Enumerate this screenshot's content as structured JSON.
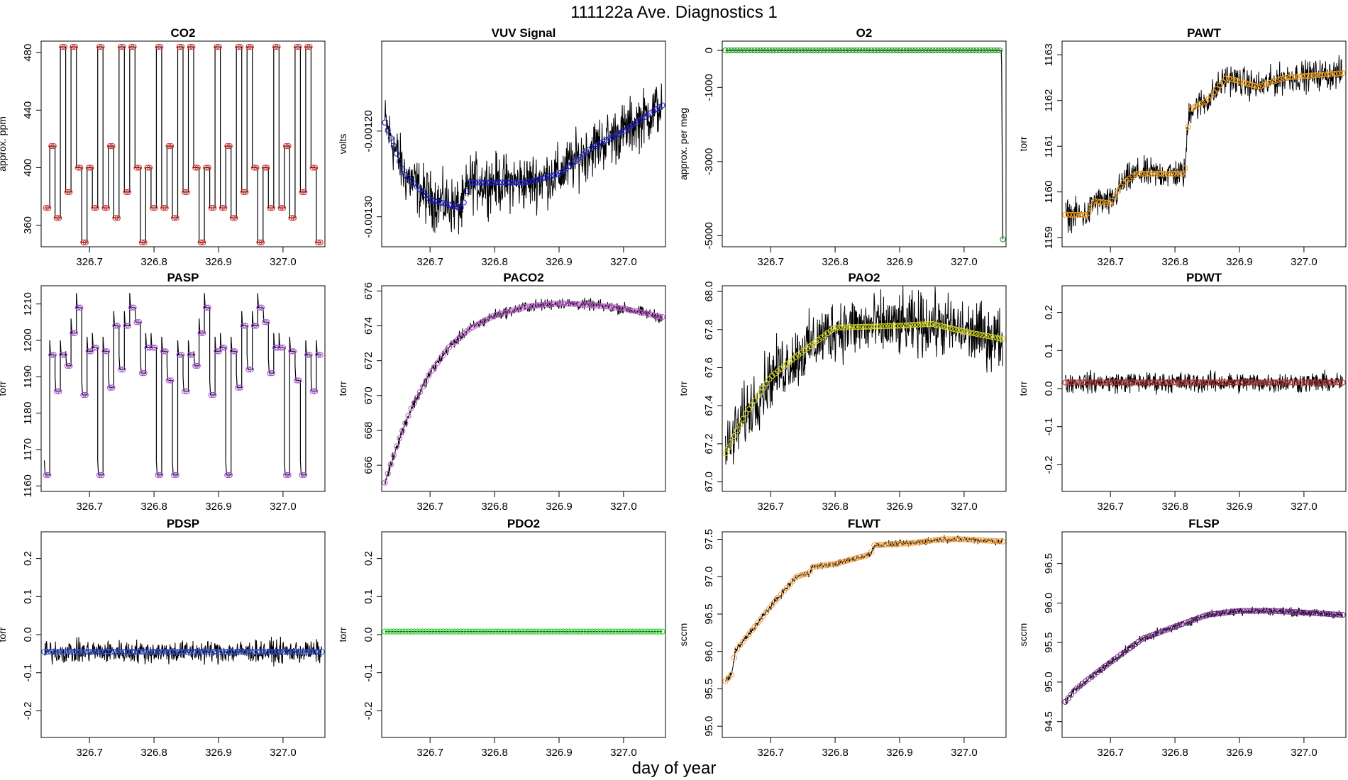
{
  "figure": {
    "title": "111122a   Ave. Diagnostics 1",
    "xlabel": "day of year"
  },
  "colors": {
    "trace": "#000000",
    "co2": "#e03030",
    "vuv": "#2020c0",
    "o2": "#20a020",
    "pawt": "#f0a020",
    "pasp": "#a050d0",
    "paco2": "#c060d0",
    "pao2": "#d8d820",
    "pdwt": "#b03030",
    "pdsp": "#3050d0",
    "pdo2": "#30d030",
    "flwt": "#f0a040",
    "flsp": "#7a3090"
  },
  "chart_data": [
    {
      "id": "co2",
      "type": "line",
      "title": "CO2",
      "xlabel": "",
      "ylabel": "approx. ppm",
      "xlim": [
        326.625,
        327.065
      ],
      "ylim": [
        345,
        488
      ],
      "xticks": [
        326.7,
        326.8,
        326.9,
        327.0
      ],
      "xtick_labels": [
        "326.7",
        "326.8",
        "326.9",
        "327.0"
      ],
      "yticks": [
        360,
        400,
        440,
        480
      ],
      "ytick_labels": [
        "360",
        "400",
        "440",
        "480"
      ],
      "pattern": "cycle",
      "cycle_values": [
        372,
        415,
        365,
        484,
        383,
        484,
        400,
        348,
        400,
        372,
        484
      ],
      "marker_color_key": "co2"
    },
    {
      "id": "vuv",
      "type": "line",
      "title": "VUV Signal",
      "xlabel": "",
      "ylabel": "volts",
      "xlim": [
        326.625,
        327.065
      ],
      "ylim": [
        -0.001335,
        -0.001095
      ],
      "xticks": [
        326.7,
        326.8,
        326.9,
        327.0
      ],
      "xtick_labels": [
        "326.7",
        "326.8",
        "326.9",
        "327.0"
      ],
      "yticks": [
        -0.0013,
        -0.0012
      ],
      "ytick_labels": [
        "-0.00130",
        "-0.00120"
      ],
      "pattern": "curve",
      "noise": 2.2e-05,
      "curve": [
        [
          326.63,
          -0.00119
        ],
        [
          326.66,
          -0.00125
        ],
        [
          326.7,
          -0.00128
        ],
        [
          326.75,
          -0.00129
        ],
        [
          326.76,
          -0.00126
        ],
        [
          326.8,
          -0.00126
        ],
        [
          326.85,
          -0.00126
        ],
        [
          326.9,
          -0.00125
        ],
        [
          326.95,
          -0.00122
        ],
        [
          327.0,
          -0.0012
        ],
        [
          327.06,
          -0.00117
        ]
      ],
      "marker_color_key": "vuv"
    },
    {
      "id": "o2",
      "type": "line",
      "title": "O2",
      "xlabel": "",
      "ylabel": "approx. per meg",
      "xlim": [
        326.625,
        327.065
      ],
      "ylim": [
        -5300,
        250
      ],
      "xticks": [
        326.7,
        326.8,
        326.9,
        327.0
      ],
      "xtick_labels": [
        "326.7",
        "326.8",
        "326.9",
        "327.0"
      ],
      "yticks": [
        -5000,
        -3000,
        -1000,
        0
      ],
      "ytick_labels": [
        "-5000",
        "-3000",
        "-1000",
        "0"
      ],
      "pattern": "curve",
      "noise": 0,
      "curve": [
        [
          326.63,
          0
        ],
        [
          327.058,
          0
        ],
        [
          327.06,
          -5100
        ]
      ],
      "marker_color_key": "o2"
    },
    {
      "id": "pawt",
      "type": "line",
      "title": "PAWT",
      "xlabel": "",
      "ylabel": "torr",
      "xlim": [
        326.625,
        327.065
      ],
      "ylim": [
        1158.8,
        1163.3
      ],
      "xticks": [
        326.7,
        326.8,
        326.9,
        327.0
      ],
      "xtick_labels": [
        "326.7",
        "326.8",
        "326.9",
        "327.0"
      ],
      "yticks": [
        1159,
        1160,
        1161,
        1162,
        1163
      ],
      "ytick_labels": [
        "1159",
        "1160",
        "1161",
        "1162",
        "1163"
      ],
      "pattern": "curve",
      "noise": 0.22,
      "curve": [
        [
          326.63,
          1159.5
        ],
        [
          326.665,
          1159.5
        ],
        [
          326.675,
          1159.8
        ],
        [
          326.7,
          1159.75
        ],
        [
          326.72,
          1160.2
        ],
        [
          326.74,
          1160.4
        ],
        [
          326.8,
          1160.4
        ],
        [
          326.815,
          1160.4
        ],
        [
          326.822,
          1161.8
        ],
        [
          326.85,
          1162.0
        ],
        [
          326.88,
          1162.5
        ],
        [
          326.93,
          1162.3
        ],
        [
          326.97,
          1162.5
        ],
        [
          327.06,
          1162.6
        ]
      ],
      "marker_color_key": "pawt"
    },
    {
      "id": "pasp",
      "type": "line",
      "title": "PASP",
      "xlabel": "",
      "ylabel": "torr",
      "xlim": [
        326.625,
        327.065
      ],
      "ylim": [
        1158.5,
        1215
      ],
      "xticks": [
        326.7,
        326.8,
        326.9,
        327.0
      ],
      "xtick_labels": [
        "326.7",
        "326.8",
        "326.9",
        "327.0"
      ],
      "yticks": [
        1160,
        1170,
        1180,
        1190,
        1200,
        1210
      ],
      "ytick_labels": [
        "1160",
        "1170",
        "1180",
        "1190",
        "1200",
        "1210"
      ],
      "pattern": "cycle",
      "cycle_values": [
        1163,
        1196,
        1186,
        1196,
        1193,
        1202,
        1209,
        1185,
        1197,
        1198,
        1163,
        1197,
        1187,
        1204,
        1192,
        1204,
        1209,
        1205,
        1191,
        1198,
        1198,
        1163,
        1197,
        1189
      ],
      "marker_color_key": "pasp"
    },
    {
      "id": "paco2",
      "type": "line",
      "title": "PACO2",
      "xlabel": "",
      "ylabel": "torr",
      "xlim": [
        326.625,
        327.065
      ],
      "ylim": [
        664.5,
        676.3
      ],
      "xticks": [
        326.7,
        326.8,
        326.9,
        327.0
      ],
      "xtick_labels": [
        "326.7",
        "326.8",
        "326.9",
        "327.0"
      ],
      "yticks": [
        666,
        668,
        670,
        672,
        674,
        676
      ],
      "ytick_labels": [
        "666",
        "668",
        "670",
        "672",
        "674",
        "676"
      ],
      "pattern": "curve",
      "noise": 0.22,
      "curve": [
        [
          326.63,
          665.0
        ],
        [
          326.65,
          667.3
        ],
        [
          326.67,
          669.2
        ],
        [
          326.7,
          671.3
        ],
        [
          326.73,
          672.8
        ],
        [
          326.76,
          673.8
        ],
        [
          326.8,
          674.6
        ],
        [
          326.85,
          675.1
        ],
        [
          326.9,
          675.3
        ],
        [
          326.95,
          675.2
        ],
        [
          327.0,
          675.0
        ],
        [
          327.06,
          674.5
        ]
      ],
      "marker_color_key": "paco2"
    },
    {
      "id": "pao2",
      "type": "line",
      "title": "PAO2",
      "xlabel": "",
      "ylabel": "torr",
      "xlim": [
        326.625,
        327.065
      ],
      "ylim": [
        66.95,
        68.03
      ],
      "xticks": [
        326.7,
        326.8,
        326.9,
        327.0
      ],
      "xtick_labels": [
        "326.7",
        "326.8",
        "326.9",
        "327.0"
      ],
      "yticks": [
        67.0,
        67.2,
        67.4,
        67.6,
        67.8,
        68.0
      ],
      "ytick_labels": [
        "67.0",
        "67.2",
        "67.4",
        "67.6",
        "67.8",
        "68.0"
      ],
      "pattern": "curve",
      "noise": 0.11,
      "curve": [
        [
          326.63,
          67.15
        ],
        [
          326.66,
          67.35
        ],
        [
          326.7,
          67.55
        ],
        [
          326.74,
          67.66
        ],
        [
          326.78,
          67.76
        ],
        [
          326.8,
          67.81
        ],
        [
          326.9,
          67.82
        ],
        [
          326.95,
          67.83
        ],
        [
          327.0,
          67.79
        ],
        [
          327.06,
          67.75
        ]
      ],
      "marker_color_key": "pao2"
    },
    {
      "id": "pdwt",
      "type": "line",
      "title": "PDWT",
      "xlabel": "",
      "ylabel": "torr",
      "xlim": [
        326.625,
        327.065
      ],
      "ylim": [
        -0.27,
        0.27
      ],
      "xticks": [
        326.7,
        326.8,
        326.9,
        327.0
      ],
      "xtick_labels": [
        "326.7",
        "326.8",
        "326.9",
        "327.0"
      ],
      "yticks": [
        -0.2,
        -0.1,
        0.0,
        0.1,
        0.2
      ],
      "ytick_labels": [
        "-0.2",
        "-0.1",
        "0.0",
        "0.1",
        "0.2"
      ],
      "pattern": "curve",
      "noise": 0.018,
      "curve": [
        [
          326.63,
          0.016
        ],
        [
          327.06,
          0.016
        ]
      ],
      "marker_color_key": "pdwt"
    },
    {
      "id": "pdsp",
      "type": "line",
      "title": "PDSP",
      "xlabel": "",
      "ylabel": "torr",
      "xlim": [
        326.625,
        327.065
      ],
      "ylim": [
        -0.27,
        0.27
      ],
      "xticks": [
        326.7,
        326.8,
        326.9,
        327.0
      ],
      "xtick_labels": [
        "326.7",
        "326.8",
        "326.9",
        "327.0"
      ],
      "yticks": [
        -0.2,
        -0.1,
        0.0,
        0.1,
        0.2
      ],
      "ytick_labels": [
        "-0.2",
        "-0.1",
        "0.0",
        "0.1",
        "0.2"
      ],
      "pattern": "curve",
      "noise": 0.02,
      "curve": [
        [
          326.63,
          -0.045
        ],
        [
          327.06,
          -0.045
        ]
      ],
      "marker_color_key": "pdsp"
    },
    {
      "id": "pdo2",
      "type": "line",
      "title": "PDO2",
      "xlabel": "",
      "ylabel": "torr",
      "xlim": [
        326.625,
        327.065
      ],
      "ylim": [
        -0.27,
        0.27
      ],
      "xticks": [
        326.7,
        326.8,
        326.9,
        327.0
      ],
      "xtick_labels": [
        "326.7",
        "326.8",
        "326.9",
        "327.0"
      ],
      "yticks": [
        -0.2,
        -0.1,
        0.0,
        0.1,
        0.2
      ],
      "ytick_labels": [
        "-0.2",
        "-0.1",
        "0.0",
        "0.1",
        "0.2"
      ],
      "pattern": "curve",
      "noise": 0,
      "curve": [
        [
          326.63,
          0.008
        ],
        [
          327.06,
          0.008
        ]
      ],
      "marker_color_key": "pdo2"
    },
    {
      "id": "flwt",
      "type": "line",
      "title": "FLWT",
      "xlabel": "",
      "ylabel": "sccm",
      "xlim": [
        326.625,
        327.065
      ],
      "ylim": [
        94.85,
        97.6
      ],
      "xticks": [
        326.7,
        326.8,
        326.9,
        327.0
      ],
      "xtick_labels": [
        "326.7",
        "326.8",
        "326.9",
        "327.0"
      ],
      "yticks": [
        95.0,
        95.5,
        96.0,
        96.5,
        97.0,
        97.5
      ],
      "ytick_labels": [
        "95.0",
        "95.5",
        "96.0",
        "96.5",
        "97.0",
        "97.5"
      ],
      "pattern": "curve",
      "noise": 0.03,
      "curve": [
        [
          326.63,
          95.6
        ],
        [
          326.64,
          95.7
        ],
        [
          326.645,
          96.0
        ],
        [
          326.7,
          96.6
        ],
        [
          326.74,
          97.0
        ],
        [
          326.76,
          97.05
        ],
        [
          326.765,
          97.13
        ],
        [
          326.8,
          97.17
        ],
        [
          326.855,
          97.3
        ],
        [
          326.86,
          97.42
        ],
        [
          326.92,
          97.45
        ],
        [
          326.965,
          97.5
        ],
        [
          327.0,
          97.5
        ],
        [
          327.06,
          97.47
        ]
      ],
      "marker_color_key": "flwt"
    },
    {
      "id": "flsp",
      "type": "line",
      "title": "FLSP",
      "xlabel": "",
      "ylabel": "sccm",
      "xlim": [
        326.625,
        327.065
      ],
      "ylim": [
        94.3,
        96.9
      ],
      "xticks": [
        326.7,
        326.8,
        326.9,
        327.0
      ],
      "xtick_labels": [
        "326.7",
        "326.8",
        "326.9",
        "327.0"
      ],
      "yticks": [
        94.5,
        95.0,
        95.5,
        96.0,
        96.5
      ],
      "ytick_labels": [
        "94.5",
        "95.0",
        "95.5",
        "96.0",
        "96.5"
      ],
      "pattern": "curve",
      "noise": 0.035,
      "curve": [
        [
          326.63,
          94.75
        ],
        [
          326.645,
          94.9
        ],
        [
          326.66,
          95.0
        ],
        [
          326.7,
          95.25
        ],
        [
          326.75,
          95.55
        ],
        [
          326.8,
          95.7
        ],
        [
          326.85,
          95.85
        ],
        [
          326.9,
          95.9
        ],
        [
          326.95,
          95.9
        ],
        [
          327.0,
          95.88
        ],
        [
          327.06,
          95.85
        ]
      ],
      "marker_color_key": "flsp"
    }
  ]
}
